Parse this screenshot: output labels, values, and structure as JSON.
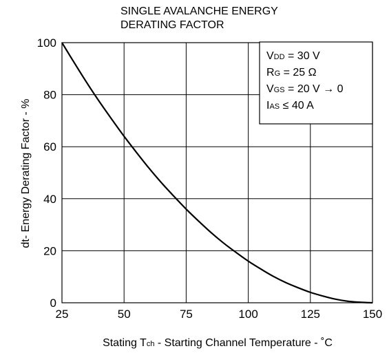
{
  "chart_data": {
    "type": "line",
    "title_lines": [
      "SINGLE AVALANCHE ENERGY",
      "DERATING FACTOR"
    ],
    "xlabel": {
      "prefix": "Stating T",
      "sub": "ch",
      "suffix": " - Starting Channel Temperature - ˚C"
    },
    "ylabel": "dt- Energy Derating Factor - %",
    "xlim": [
      25,
      150
    ],
    "ylim": [
      0,
      100
    ],
    "x_ticks": [
      25,
      50,
      75,
      100,
      125,
      150
    ],
    "y_ticks": [
      0,
      20,
      40,
      60,
      80,
      100
    ],
    "grid": true,
    "series": [
      {
        "x": [
          25,
          30,
          35,
          40,
          45,
          50,
          55,
          60,
          65,
          70,
          75,
          80,
          85,
          90,
          95,
          100,
          105,
          110,
          115,
          120,
          125,
          130,
          135,
          140,
          145,
          150
        ],
        "y": [
          100,
          92.2,
          84.6,
          77.4,
          70.6,
          64.0,
          57.8,
          51.8,
          46.2,
          41.0,
          36.0,
          31.4,
          27.0,
          23.0,
          19.4,
          16.0,
          13.0,
          10.2,
          7.8,
          5.8,
          4.0,
          2.6,
          1.4,
          0.6,
          0.2,
          0
        ]
      }
    ],
    "annotation": {
      "lines": [
        {
          "main": "V",
          "sub": "DD",
          "rest": " = 30 V"
        },
        {
          "main": "R",
          "sub": "G",
          "rest": " = 25 Ω"
        },
        {
          "main": "V",
          "sub": "GS",
          "rest": " = 20 V → 0"
        },
        {
          "main": "I",
          "sub": "AS",
          "rest": " ≤ 40 A"
        }
      ]
    },
    "colors": {
      "line": "#000000",
      "grid": "#000000",
      "background": "#ffffff"
    }
  }
}
